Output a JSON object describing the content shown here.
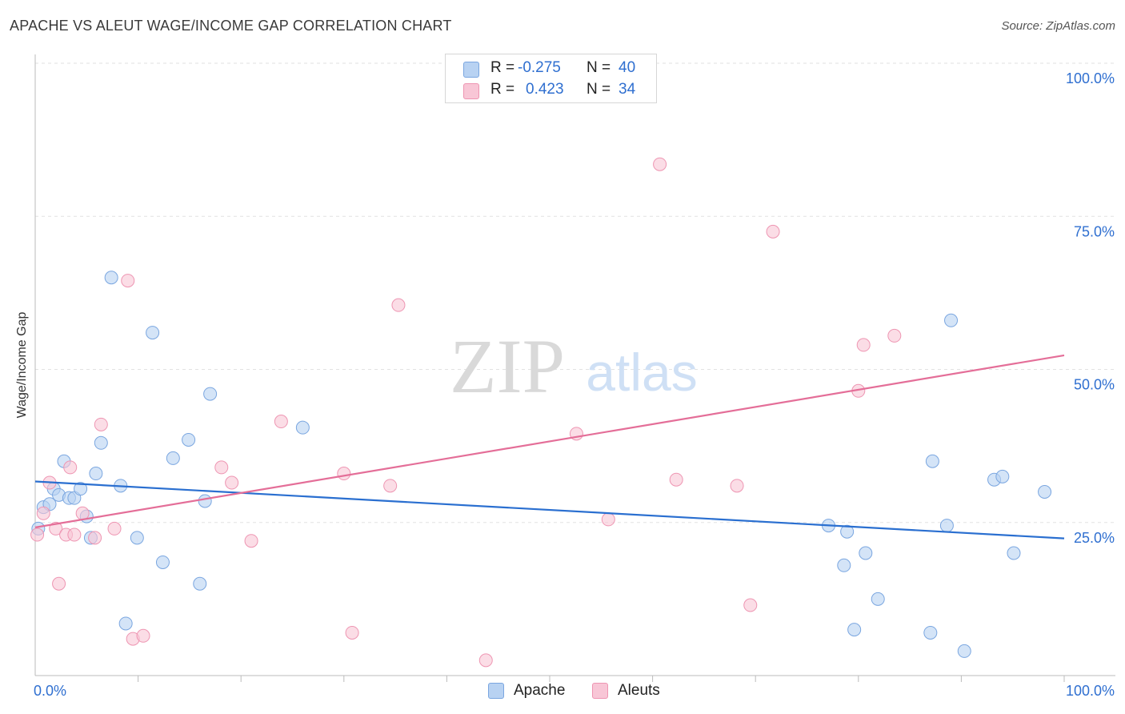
{
  "header": {
    "title": "APACHE VS ALEUT WAGE/INCOME GAP CORRELATION CHART",
    "source": "Source: ZipAtlas.com"
  },
  "watermark": {
    "zip": "ZIP",
    "atlas": "atlas"
  },
  "legend": {
    "r_label": "R =",
    "n_label": "N =",
    "apache": {
      "r": "-0.275",
      "n": "40"
    },
    "aleut": {
      "r": "0.423",
      "n": "34"
    }
  },
  "colors": {
    "apache_fill": "#b8d2f2",
    "apache_stroke": "#7aa6e0",
    "apache_line": "#2a6fd0",
    "aleut_fill": "#f8c6d6",
    "aleut_stroke": "#ee95b2",
    "aleut_line": "#e46e98",
    "axis_text": "#2f6fd0",
    "grid": "#e2e2e2"
  },
  "chart_data": {
    "type": "scatter",
    "title": "APACHE VS ALEUT WAGE/INCOME GAP CORRELATION CHART",
    "xlabel": "",
    "ylabel": "Wage/Income Gap",
    "xlim": [
      0,
      100
    ],
    "ylim": [
      0,
      100
    ],
    "x_tick_labels": [
      "0.0%",
      "100.0%"
    ],
    "y_ticks": [
      25,
      50,
      75,
      100
    ],
    "y_tick_labels": [
      "25.0%",
      "50.0%",
      "75.0%",
      "100.0%"
    ],
    "grid": true,
    "legend_position": "top-center",
    "series": [
      {
        "name": "Apache",
        "points": [
          [
            0.3,
            24
          ],
          [
            0.8,
            27.5
          ],
          [
            1.4,
            28
          ],
          [
            1.8,
            30.5
          ],
          [
            2.3,
            29.5
          ],
          [
            2.8,
            35
          ],
          [
            3.3,
            29
          ],
          [
            3.8,
            29
          ],
          [
            4.4,
            30.5
          ],
          [
            5.0,
            26
          ],
          [
            5.4,
            22.5
          ],
          [
            5.9,
            33
          ],
          [
            6.4,
            38
          ],
          [
            7.4,
            65
          ],
          [
            8.3,
            31
          ],
          [
            8.8,
            8.5
          ],
          [
            9.9,
            22.5
          ],
          [
            11.4,
            56
          ],
          [
            12.4,
            18.5
          ],
          [
            13.4,
            35.5
          ],
          [
            14.9,
            38.5
          ],
          [
            16.0,
            15
          ],
          [
            16.5,
            28.5
          ],
          [
            17.0,
            46
          ],
          [
            26.0,
            40.5
          ],
          [
            77.1,
            24.5
          ],
          [
            78.6,
            18
          ],
          [
            78.9,
            23.5
          ],
          [
            79.6,
            7.5
          ],
          [
            80.7,
            20
          ],
          [
            81.9,
            12.5
          ],
          [
            87.0,
            7
          ],
          [
            87.2,
            35
          ],
          [
            88.6,
            24.5
          ],
          [
            89.0,
            58
          ],
          [
            90.3,
            4
          ],
          [
            93.2,
            32
          ],
          [
            94.0,
            32.5
          ],
          [
            95.1,
            20
          ],
          [
            98.1,
            30
          ]
        ]
      },
      {
        "name": "Aleut",
        "points": [
          [
            0.2,
            23
          ],
          [
            0.8,
            26.5
          ],
          [
            1.4,
            31.5
          ],
          [
            2.0,
            24
          ],
          [
            2.3,
            15
          ],
          [
            3.0,
            23
          ],
          [
            3.4,
            34
          ],
          [
            3.8,
            23
          ],
          [
            4.6,
            26.5
          ],
          [
            5.8,
            22.5
          ],
          [
            6.4,
            41
          ],
          [
            7.7,
            24
          ],
          [
            9.0,
            64.5
          ],
          [
            9.5,
            6
          ],
          [
            10.5,
            6.5
          ],
          [
            18.1,
            34
          ],
          [
            19.1,
            31.5
          ],
          [
            21.0,
            22
          ],
          [
            23.9,
            41.5
          ],
          [
            30.0,
            33
          ],
          [
            30.8,
            7
          ],
          [
            34.5,
            31
          ],
          [
            35.3,
            60.5
          ],
          [
            43.8,
            2.5
          ],
          [
            52.6,
            39.5
          ],
          [
            55.7,
            25.5
          ],
          [
            60.7,
            83.5
          ],
          [
            62.3,
            32
          ],
          [
            68.2,
            31
          ],
          [
            69.5,
            11.5
          ],
          [
            71.7,
            72.5
          ],
          [
            80.0,
            46.5
          ],
          [
            80.5,
            54
          ],
          [
            83.5,
            55.5
          ]
        ]
      }
    ],
    "trend_lines": [
      {
        "series": "Apache",
        "x": [
          0,
          100
        ],
        "y": [
          31.7,
          22.4
        ]
      },
      {
        "series": "Aleut",
        "x": [
          0,
          100
        ],
        "y": [
          24.2,
          52.3
        ]
      }
    ]
  },
  "bottom_legend": {
    "apache": "Apache",
    "aleut": "Aleuts"
  }
}
